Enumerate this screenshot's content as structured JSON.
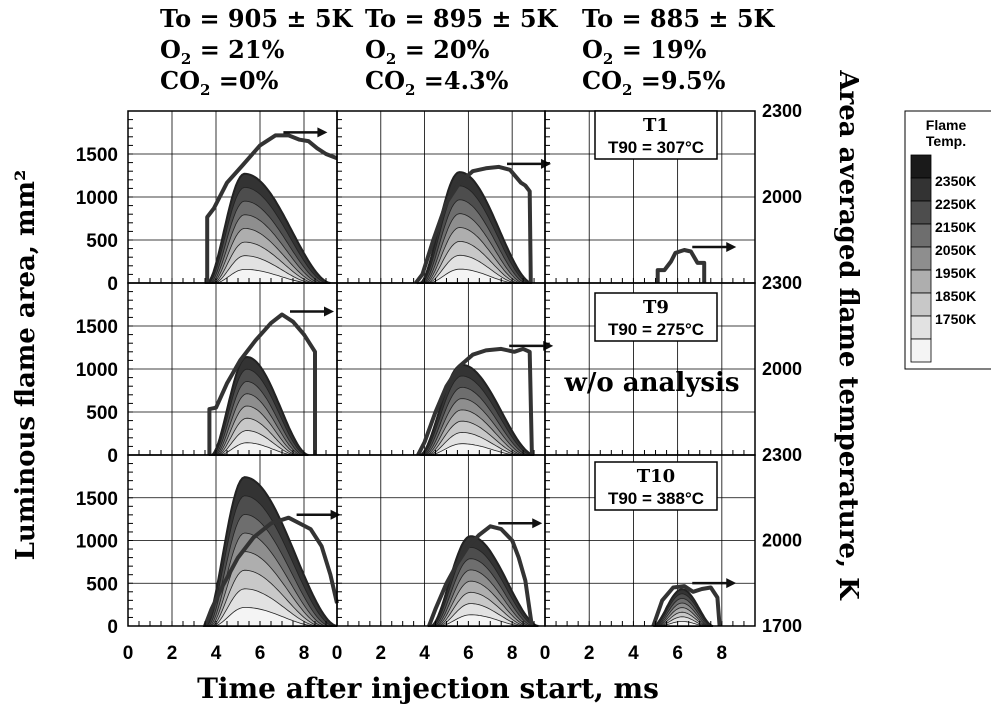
{
  "conditions": [
    {
      "to": "To = 905 ± 5K",
      "o2_prefix": "O",
      "o2_sub": "2",
      "o2_value": " = 21%",
      "co2_prefix": "CO",
      "co2_sub": "2",
      "co2_value": " =0%"
    },
    {
      "to": "To = 895 ± 5K",
      "o2_prefix": "O",
      "o2_sub": "2",
      "o2_value": " = 20%",
      "co2_prefix": "CO",
      "co2_sub": "2",
      "co2_value": " =4.3%"
    },
    {
      "to": "To = 885 ± 5K",
      "o2_prefix": "O",
      "o2_sub": "2",
      "o2_value": " = 19%",
      "co2_prefix": "CO",
      "co2_sub": "2",
      "co2_value": " =9.5%"
    }
  ],
  "legend": {
    "title_line1": "Flame",
    "title_line2": "Temp.",
    "entries": [
      {
        "label": "",
        "color": "#1a1a1a"
      },
      {
        "label": "2350K",
        "color": "#333333"
      },
      {
        "label": "2250K",
        "color": "#4d4d4d"
      },
      {
        "label": "2150K",
        "color": "#6e6e6e"
      },
      {
        "label": "2050K",
        "color": "#8e8e8e"
      },
      {
        "label": "1950K",
        "color": "#aeaeae"
      },
      {
        "label": "1850K",
        "color": "#c8c8c8"
      },
      {
        "label": "1750K",
        "color": "#e2e2e2"
      },
      {
        "label": "",
        "color": "#f4f4f4"
      }
    ]
  },
  "chart_data": {
    "type": "area",
    "xlabel": "Time after injection start, ms",
    "ylabel_left": "Luminous flame area, mm²",
    "ylabel_right": "Area averaged flame temperature, K",
    "x_tick_labels": [
      "0",
      "2",
      "4",
      "6",
      "8"
    ],
    "xlim": [
      0,
      9.5
    ],
    "y_left_ticks": [
      "0",
      "500",
      "1000",
      "1500"
    ],
    "y_left_lim": [
      0,
      2000
    ],
    "y_right_ticks_top": [
      "2300",
      "2000"
    ],
    "y_right_ticks_middle": [
      "2300",
      "2000"
    ],
    "y_right_ticks_bottom": [
      "2300",
      "2000",
      "1700"
    ],
    "y_right_lim": [
      1700,
      2300
    ],
    "grid": true,
    "rows": [
      {
        "fuel": "T1",
        "t90": "T90 = 307°C",
        "panels": [
          {
            "peak_t": 5.3,
            "peak_area": 1270,
            "onset": 3.6,
            "end": 9.2,
            "temp": [
              [
                3.6,
                1700
              ],
              [
                3.6,
                1930
              ],
              [
                3.9,
                1960
              ],
              [
                4.5,
                2050
              ],
              [
                5.2,
                2110
              ],
              [
                6.0,
                2180
              ],
              [
                6.7,
                2215
              ],
              [
                7.3,
                2215
              ],
              [
                7.8,
                2200
              ],
              [
                8.2,
                2195
              ],
              [
                8.6,
                2170
              ],
              [
                9.0,
                2150
              ],
              [
                9.5,
                2135
              ]
            ]
          },
          {
            "peak_t": 5.6,
            "peak_area": 1290,
            "onset": 3.8,
            "end": 8.9,
            "temp": [
              [
                3.6,
                1700
              ],
              [
                3.9,
                1730
              ],
              [
                4.4,
                1850
              ],
              [
                5.0,
                1980
              ],
              [
                5.6,
                2050
              ],
              [
                6.2,
                2090
              ],
              [
                6.8,
                2100
              ],
              [
                7.4,
                2105
              ],
              [
                7.9,
                2095
              ],
              [
                8.4,
                2050
              ],
              [
                8.6,
                2040
              ],
              [
                8.8,
                2020
              ],
              [
                8.85,
                1700
              ]
            ]
          },
          {
            "peak_t": 0,
            "peak_area": 0,
            "onset": 0,
            "end": 0,
            "temp": [
              [
                5.1,
                1700
              ],
              [
                5.1,
                1745
              ],
              [
                5.4,
                1745
              ],
              [
                5.7,
                1775
              ],
              [
                5.9,
                1805
              ],
              [
                6.3,
                1815
              ],
              [
                6.6,
                1810
              ],
              [
                6.9,
                1770
              ],
              [
                7.2,
                1770
              ],
              [
                7.2,
                1700
              ]
            ]
          }
        ]
      },
      {
        "fuel": "T9",
        "t90": "T90 = 275°C",
        "panels": [
          {
            "peak_t": 5.4,
            "peak_area": 1140,
            "onset": 3.8,
            "end": 8.2,
            "temp": [
              [
                3.7,
                1700
              ],
              [
                3.7,
                1860
              ],
              [
                4.0,
                1865
              ],
              [
                4.5,
                1950
              ],
              [
                5.1,
                2030
              ],
              [
                5.8,
                2100
              ],
              [
                6.5,
                2160
              ],
              [
                7.0,
                2190
              ],
              [
                7.5,
                2165
              ],
              [
                8.0,
                2120
              ],
              [
                8.5,
                2060
              ],
              [
                8.5,
                1700
              ]
            ]
          },
          {
            "peak_t": 5.7,
            "peak_area": 1050,
            "onset": 3.8,
            "end": 9.0,
            "temp": [
              [
                3.7,
                1700
              ],
              [
                4.0,
                1745
              ],
              [
                4.5,
                1850
              ],
              [
                5.0,
                1940
              ],
              [
                5.6,
                2010
              ],
              [
                6.2,
                2050
              ],
              [
                6.8,
                2065
              ],
              [
                7.5,
                2070
              ],
              [
                8.1,
                2060
              ],
              [
                8.5,
                2070
              ],
              [
                8.8,
                2060
              ],
              [
                8.9,
                1700
              ]
            ]
          }
        ]
      },
      {
        "fuel": "T10",
        "t90": "T90 = 388°C",
        "panels": [
          {
            "peak_t": 5.3,
            "peak_area": 1740,
            "onset": 3.5,
            "end": 9.5,
            "temp": [
              [
                3.5,
                1700
              ],
              [
                3.8,
                1760
              ],
              [
                4.3,
                1840
              ],
              [
                5.0,
                1940
              ],
              [
                5.7,
                2010
              ],
              [
                6.5,
                2060
              ],
              [
                7.3,
                2080
              ],
              [
                7.8,
                2060
              ],
              [
                8.3,
                2040
              ],
              [
                8.8,
                1980
              ],
              [
                9.2,
                1880
              ],
              [
                9.5,
                1780
              ]
            ]
          },
          {
            "peak_t": 6.1,
            "peak_area": 1050,
            "onset": 4.3,
            "end": 9.2,
            "temp": [
              [
                4.2,
                1700
              ],
              [
                4.5,
                1760
              ],
              [
                5.0,
                1850
              ],
              [
                5.5,
                1920
              ],
              [
                6.0,
                1980
              ],
              [
                6.5,
                2020
              ],
              [
                7.0,
                2050
              ],
              [
                7.5,
                2040
              ],
              [
                8.0,
                2000
              ],
              [
                8.3,
                1940
              ],
              [
                8.6,
                1860
              ],
              [
                8.9,
                1700
              ]
            ]
          },
          {
            "peak_t": 6.2,
            "peak_area": 430,
            "onset": 4.9,
            "end": 7.6,
            "temp": [
              [
                4.9,
                1700
              ],
              [
                5.3,
                1790
              ],
              [
                5.8,
                1835
              ],
              [
                6.3,
                1840
              ],
              [
                6.7,
                1820
              ],
              [
                7.1,
                1830
              ],
              [
                7.5,
                1835
              ],
              [
                7.8,
                1800
              ],
              [
                7.9,
                1700
              ]
            ]
          }
        ]
      }
    ],
    "empty_panel_label": "w/o analysis"
  }
}
